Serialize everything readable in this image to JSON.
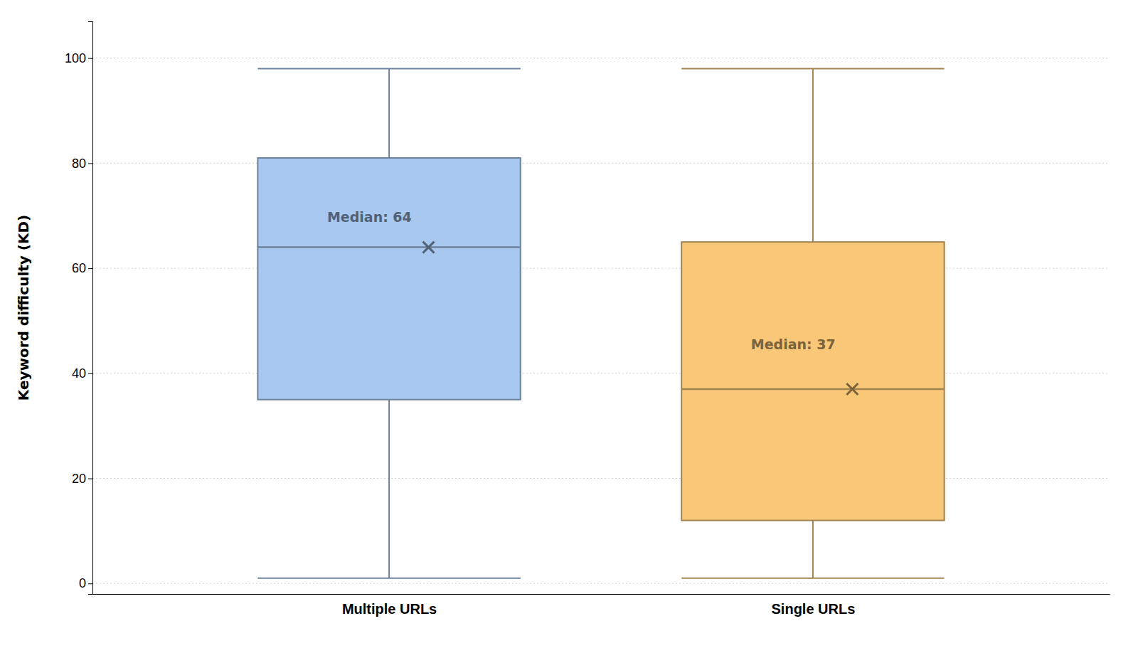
{
  "chart_data": {
    "type": "box",
    "ylabel": "Keyword difficulty (KD)",
    "categories": [
      "Multiple URLs",
      "Single URLs"
    ],
    "q1": [
      35,
      12
    ],
    "median": [
      64,
      37
    ],
    "q3": [
      81,
      65
    ],
    "whisker_low": [
      1,
      1
    ],
    "whisker_high": [
      98,
      98
    ],
    "mean": [
      64,
      37
    ],
    "median_labels": [
      "Median: 64",
      "Median: 37"
    ],
    "colors": [
      "#a8c8f0",
      "#f8c878"
    ],
    "ylim": [
      -2,
      107
    ],
    "yticks": [
      0,
      20,
      40,
      60,
      80,
      100
    ],
    "grid": true
  }
}
